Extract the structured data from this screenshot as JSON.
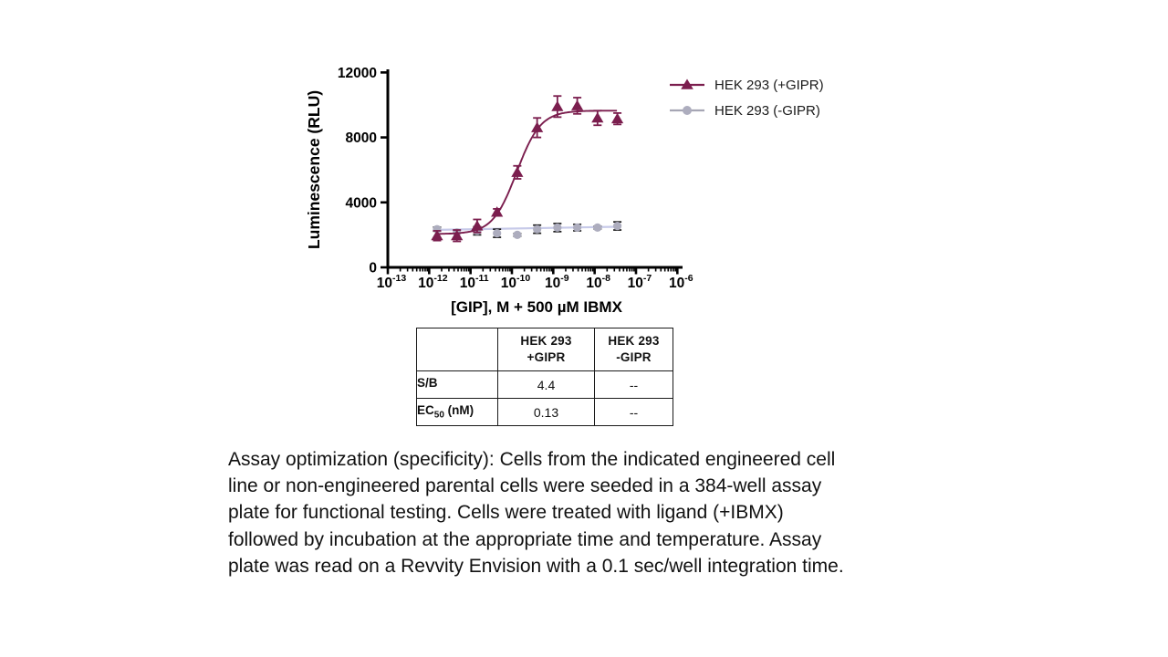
{
  "page": {
    "background": "#ffffff"
  },
  "chart_data": {
    "type": "scatter",
    "title": "",
    "xlabel": "[GIP], M + 500 µM IBMX",
    "ylabel": "Luminescence (RLU)",
    "x_scale": "log",
    "x_tick_base": "10",
    "x_tick_exponents": [
      -13,
      -12,
      -11,
      -10,
      -9,
      -8,
      -7,
      -6
    ],
    "ylim": [
      0,
      12000
    ],
    "y_ticks": [
      0,
      4000,
      8000,
      12000
    ],
    "grid": false,
    "legend_position": "right-top",
    "series": [
      {
        "name": "HEK 293 (+GIPR)",
        "marker": "triangle",
        "color": "#7B1E4E",
        "legend_line_color": "#7B1E4E",
        "error_color": "#7B1E4E",
        "log_x": [
          -11.81,
          -11.33,
          -10.84,
          -10.36,
          -9.87,
          -9.39,
          -8.9,
          -8.42,
          -7.93,
          -7.45
        ],
        "x_molar": [
          1.55e-12,
          4.7e-12,
          1.45e-11,
          4.4e-11,
          1.35e-10,
          4.1e-10,
          1.25e-09,
          3.8e-09,
          1.15e-08,
          3.5e-08
        ],
        "y": [
          1950,
          1950,
          2550,
          3400,
          5850,
          8600,
          9900,
          9950,
          9200,
          9150
        ],
        "y_err": [
          300,
          350,
          400,
          200,
          400,
          600,
          650,
          500,
          450,
          350
        ],
        "fit": {
          "type": "4PL",
          "bottom": 2050,
          "top": 9650,
          "log_ec50": -9.886,
          "hill": 1.5
        }
      },
      {
        "name": "HEK 293 (-GIPR)",
        "marker": "circle",
        "color": "#ADADBE",
        "line_color": "#C7CAE9",
        "legend_line_color": "#A6A6B4",
        "error_color": "#1a1a1a",
        "log_x": [
          -11.81,
          -11.33,
          -10.84,
          -10.36,
          -9.87,
          -9.39,
          -8.9,
          -8.42,
          -7.93,
          -7.45
        ],
        "x_molar": [
          1.55e-12,
          4.7e-12,
          1.45e-11,
          4.4e-11,
          1.35e-10,
          4.1e-10,
          1.25e-09,
          3.8e-09,
          1.15e-08,
          3.5e-08
        ],
        "y": [
          2350,
          2150,
          2250,
          2100,
          2000,
          2350,
          2450,
          2450,
          2450,
          2550
        ],
        "y_err": [
          120,
          0,
          250,
          250,
          80,
          250,
          250,
          200,
          80,
          250
        ],
        "fit": {
          "type": "linear",
          "y_start": 2310,
          "y_end": 2500
        }
      }
    ]
  },
  "legend": {
    "items": [
      {
        "label": "HEK 293 (+GIPR)"
      },
      {
        "label": "HEK 293 (-GIPR)"
      }
    ]
  },
  "table": {
    "corner": "",
    "col_headers": [
      {
        "line1": "HEK 293",
        "line2": "+GIPR"
      },
      {
        "line1": "HEK 293",
        "line2": "-GIPR"
      }
    ],
    "rows": [
      {
        "label_main": "S/B",
        "label_sub": "",
        "label_rest": "",
        "values": [
          "4.4",
          "--"
        ]
      },
      {
        "label_main": "EC",
        "label_sub": "50",
        "label_rest": " (nM)",
        "values": [
          "0.13",
          "--"
        ]
      }
    ]
  },
  "caption": {
    "lines": [
      "Assay optimization (specificity): Cells from the indicated engineered cell",
      "line or non-engineered parental cells were seeded in a 384-well assay",
      "plate for functional testing. Cells were treated with ligand (+IBMX)",
      "followed by incubation at the appropriate time and temperature. Assay",
      "plate was read on a Revvity Envision with a 0.1 sec/well integration time."
    ]
  }
}
